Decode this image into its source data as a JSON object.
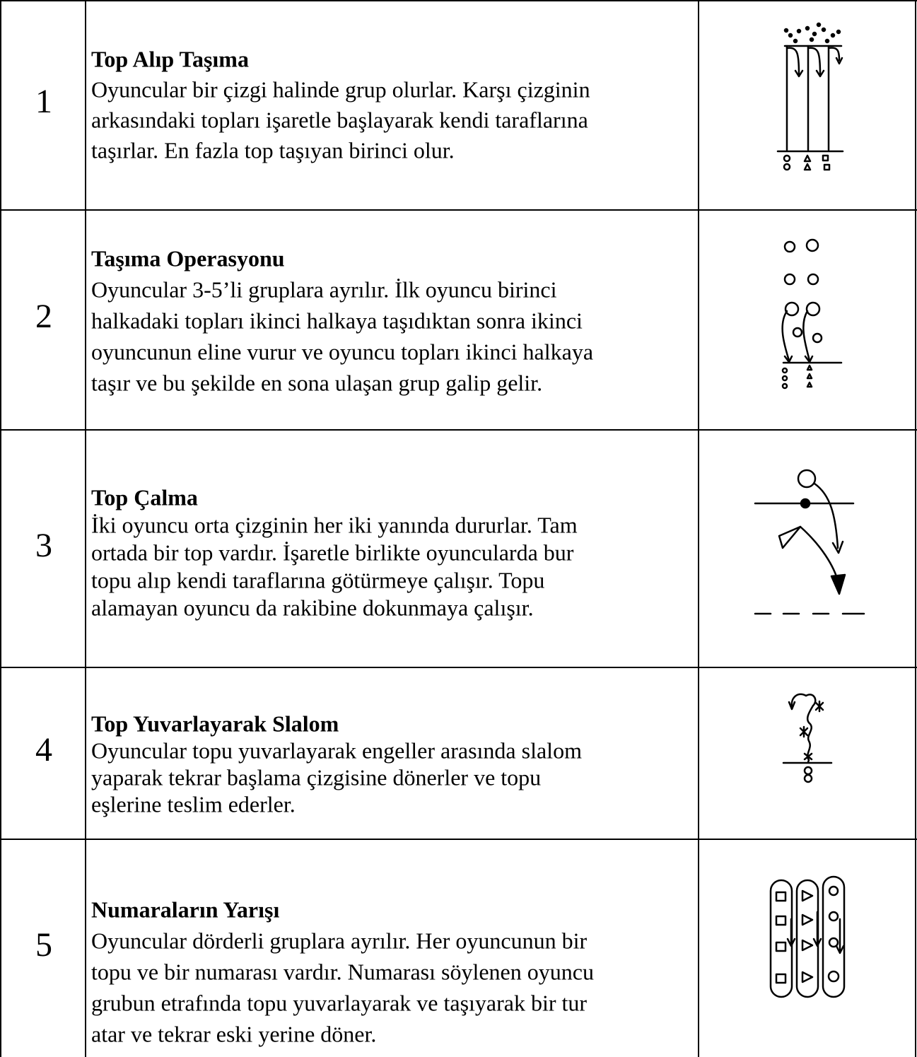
{
  "rows": [
    {
      "number": "1",
      "title": "Top Alıp Taşıma",
      "lines": [
        "Oyuncular bir çizgi halinde grup olurlar. Karşı çizginin",
        "arkasındaki topları işaretle başlayarak kendi taraflarına",
        "taşırlar. En fazla top taşıyan birinci olur."
      ]
    },
    {
      "number": "2",
      "title": "Taşıma Operasyonu",
      "lines": [
        "Oyuncular 3-5’li gruplara ayrılır. İlk oyuncu birinci",
        "halkadaki topları ikinci halkaya taşıdıktan sonra ikinci",
        "oyuncunun eline vurur ve oyuncu topları ikinci halkaya",
        "taşır ve bu şekilde en sona ulaşan grup galip gelir."
      ]
    },
    {
      "number": "3",
      "title": "Top Çalma",
      "lines": [
        "İki oyuncu orta çizginin her iki yanında dururlar. Tam",
        "ortada bir top vardır. İşaretle birlikte oyuncularda bur",
        "topu alıp kendi taraflarına götürmeye çalışır. Topu",
        "alamayan oyuncu da rakibine dokunmaya çalışır."
      ]
    },
    {
      "number": "4",
      "title": "Top Yuvarlayarak Slalom",
      "lines": [
        "Oyuncular topu yuvarlayarak engeller arasında slalom",
        "yaparak tekrar başlama çizgisine dönerler ve topu",
        "eşlerine teslim ederler."
      ]
    },
    {
      "number": "5",
      "title": "Numaraların Yarışı",
      "lines": [
        "Oyuncular dörderli gruplara ayrılır. Her oyuncunun bir",
        "topu ve bir numarası vardır. Numarası söylenen oyuncu",
        "grubun etrafında topu yuvarlayarak ve taşıyarak bir tur",
        "atar ve tekrar eski yerine döner."
      ]
    }
  ]
}
